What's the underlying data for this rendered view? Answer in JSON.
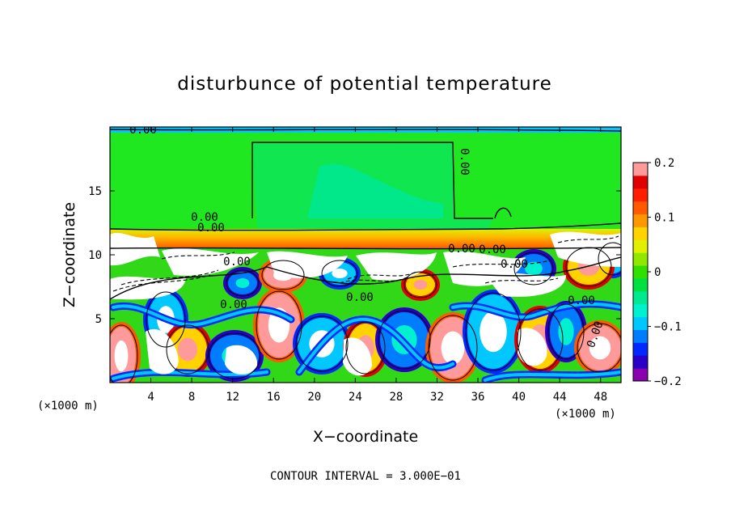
{
  "chart_data": {
    "type": "heatmap",
    "title": "disturbunce of potential temperature",
    "xlabel": "X−coordinate",
    "ylabel": "Z−coordinate",
    "x_unit_label": "(×1000 m)",
    "y_unit_label": "(×1000 m)",
    "xlim": [
      0,
      50
    ],
    "ylim": [
      0,
      20
    ],
    "x_ticks": [
      4,
      8,
      12,
      16,
      20,
      24,
      28,
      32,
      36,
      40,
      44,
      48
    ],
    "y_ticks": [
      5,
      10,
      15
    ],
    "colorbar": {
      "range": [
        -0.2,
        0.2
      ],
      "tick_values": [
        0.2,
        0.1,
        0,
        -0.1,
        -0.2
      ],
      "tick_labels": [
        "0.2",
        "0.1",
        "0",
        "−0.1",
        "−0.2"
      ],
      "colors": [
        "#8a00b0",
        "#2800c8",
        "#0028ff",
        "#007cff",
        "#00c8ff",
        "#00f0d0",
        "#00e890",
        "#00e040",
        "#30e000",
        "#90e800",
        "#e0f000",
        "#ffd200",
        "#ff9600",
        "#ff5a00",
        "#ff1e00",
        "#e00000",
        "#ff9a9a"
      ]
    },
    "contour_labels": [
      "0.00",
      "0.00",
      "0.00",
      "0.00",
      "0.00",
      "0.00",
      "0.00",
      "0.00",
      "0.00",
      "0.00",
      "0.00",
      "0.00"
    ],
    "footer": "CONTOUR INTERVAL = 3.000E−01"
  }
}
